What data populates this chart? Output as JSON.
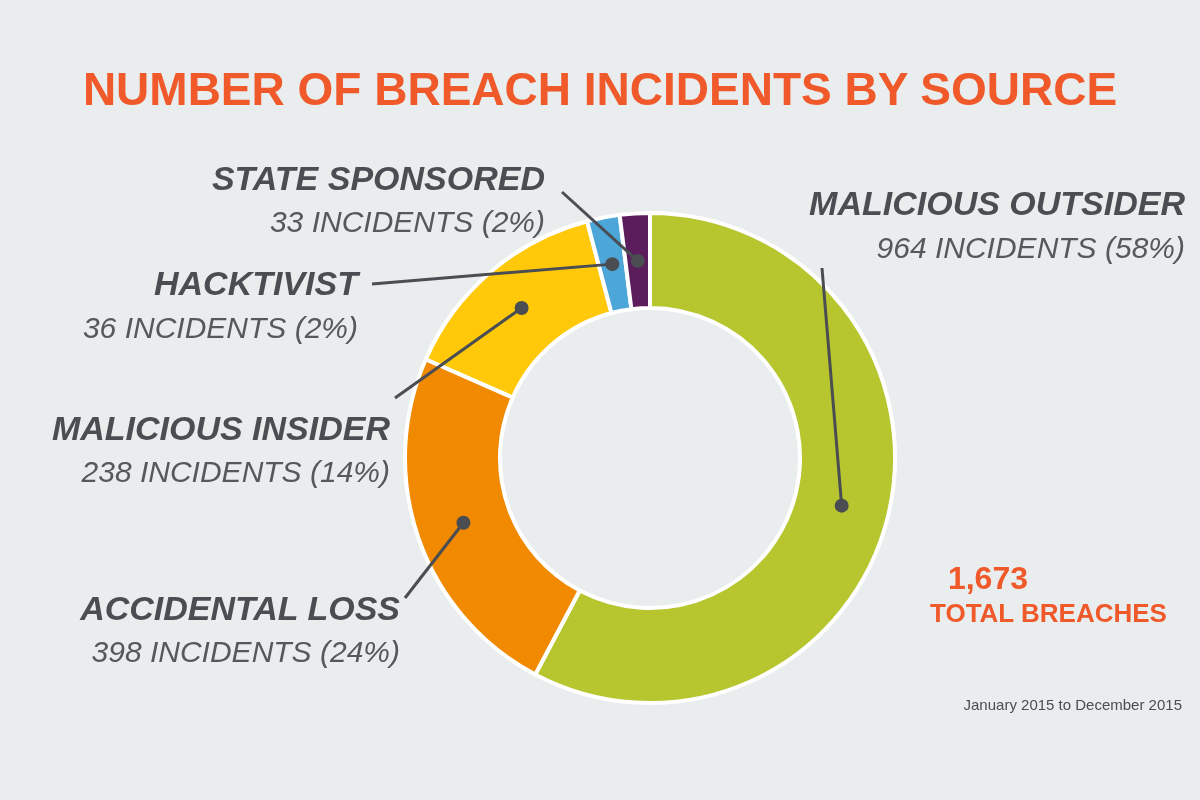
{
  "chart_data": {
    "type": "donut",
    "title": "NUMBER OF BREACH INCIDENTS BY SOURCE",
    "categories": [
      "MALICIOUS OUTSIDER",
      "ACCIDENTAL LOSS",
      "MALICIOUS INSIDER",
      "HACKTIVIST",
      "STATE SPONSORED"
    ],
    "values": [
      964,
      398,
      238,
      36,
      33
    ],
    "colors": [
      "#b7c62e",
      "#f18a00",
      "#ffc90a",
      "#4da6d8",
      "#5b1d5c"
    ],
    "value_labels": [
      "964 INCIDENTS (58%)",
      "398 INCIDENTS (24%)",
      "238 INCIDENTS (14%)",
      "36 INCIDENTS (2%)",
      "33 INCIDENTS (2%)"
    ],
    "annotations": [
      "1,673",
      "TOTAL BREACHES",
      "January 2015 to December 2015"
    ]
  }
}
